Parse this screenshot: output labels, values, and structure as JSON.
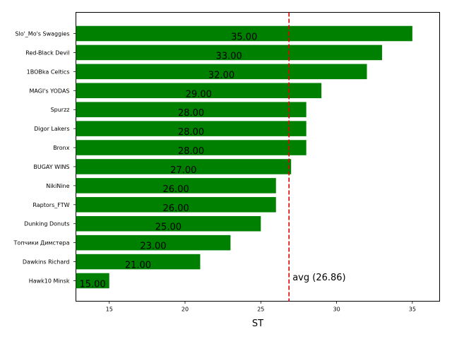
{
  "chart_data": {
    "type": "bar",
    "orientation": "horizontal",
    "categories": [
      "Slo'_Mo's Swaggies",
      "Red-Black Devil",
      "1BOBka Celtics",
      "MAGI's YODAS",
      "Spurzz",
      "Digor Lakers",
      "Bronx",
      "BUGAY WINS",
      "NikiNine",
      "Raptors_FTW",
      "Dunking Donuts",
      "Топчики Димстера",
      "Dawkins Richard",
      "Hawk10 Minsk"
    ],
    "values": [
      35,
      33,
      32,
      29,
      28,
      28,
      28,
      27,
      26,
      26,
      25,
      23,
      21,
      15
    ],
    "data_labels": [
      "35.00",
      "33.00",
      "32.00",
      "29.00",
      "28.00",
      "28.00",
      "28.00",
      "27.00",
      "26.00",
      "26.00",
      "25.00",
      "23.00",
      "21.00",
      "15.00"
    ],
    "xlabel": "ST",
    "xlim": [
      12.8,
      36.8
    ],
    "xticks": [
      15,
      20,
      25,
      30,
      35
    ],
    "bar_color": "#008000",
    "avg": {
      "value": 26.86,
      "label": "avg (26.86)",
      "color": "#dd0000"
    },
    "grid": false
  }
}
